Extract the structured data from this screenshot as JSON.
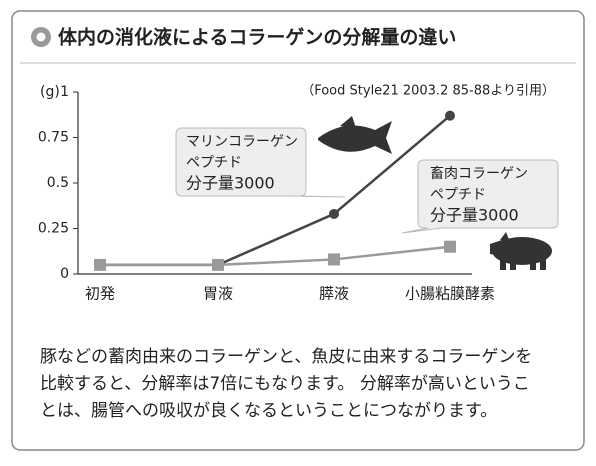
{
  "title": "体内の消化液によるコラーゲンの分解量の違い",
  "chart_data": {
    "type": "line",
    "y_label": "(g)",
    "source": "（Food Style21 2003.2 85-88より引用）",
    "categories": [
      "初発",
      "胃液",
      "膵液",
      "小腸粘膜酵素"
    ],
    "series": [
      {
        "name_lines": [
          "マリンコラーゲン",
          "ペプチド",
          "分子量3000"
        ],
        "color": "#444444",
        "marker": "circle",
        "values": [
          0.05,
          0.05,
          0.33,
          0.87
        ]
      },
      {
        "name_lines": [
          "畜肉コラーゲン",
          "ペプチド",
          "分子量3000"
        ],
        "color": "#9a9a9a",
        "marker": "square",
        "values": [
          0.05,
          0.05,
          0.08,
          0.15
        ]
      }
    ],
    "ylim": [
      0,
      1
    ],
    "yticks": [
      0,
      0.25,
      0.5,
      0.75,
      1
    ],
    "grid": false
  },
  "caption_lines": [
    "豚などの蓄肉由来のコラーゲンと、魚皮に由来するコラーゲンを",
    "比較すると、分解率は7倍にもなります。 分解率が高いというこ",
    "とは、腸管への吸収が良くなるということにつながります。"
  ]
}
